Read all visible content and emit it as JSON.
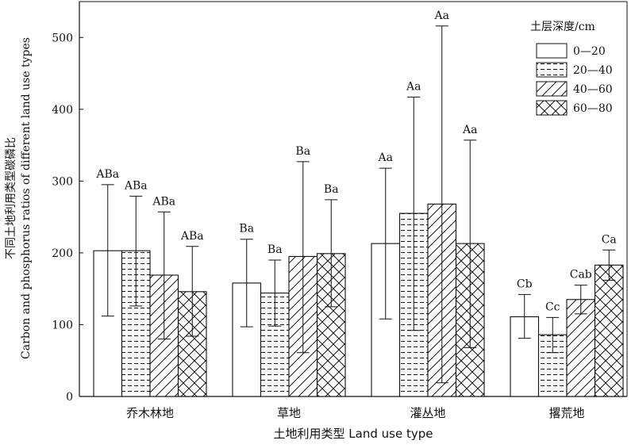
{
  "chart_data": {
    "type": "bar",
    "xlabel": "土地利用类型  Land use type",
    "ylabel": [
      "不同土地利用类型碳磷比",
      "Carbon and phosphorus ratios of different land use types"
    ],
    "ylim": [
      0,
      550
    ],
    "yticks": [
      0,
      100,
      200,
      300,
      400,
      500
    ],
    "categories": [
      "乔木林地",
      "草地",
      "灌丛地",
      "撂荒地"
    ],
    "legend": {
      "title": "土层深度/cm",
      "position": "top-right"
    },
    "series": [
      {
        "name": "0—20",
        "pattern": "blank",
        "values": [
          203,
          158,
          213,
          111
        ],
        "err_low": [
          112,
          97,
          108,
          81
        ],
        "err_high": [
          295,
          219,
          318,
          142
        ],
        "labels": [
          "ABa",
          "Ba",
          "Aa",
          "Cb"
        ]
      },
      {
        "name": "20—40",
        "pattern": "dashes",
        "values": [
          203,
          144,
          255,
          86
        ],
        "err_low": [
          126,
          98,
          92,
          61
        ],
        "err_high": [
          279,
          190,
          417,
          110
        ],
        "labels": [
          "ABa",
          "Ba",
          "Aa",
          "Cc"
        ]
      },
      {
        "name": "40—60",
        "pattern": "diagonal",
        "values": [
          169,
          195,
          268,
          135
        ],
        "err_low": [
          80,
          61,
          19,
          115
        ],
        "err_high": [
          257,
          327,
          516,
          155
        ],
        "labels": [
          "ABa",
          "Ba",
          "Aa",
          "Cab"
        ]
      },
      {
        "name": "60—80",
        "pattern": "crosshatch",
        "values": [
          146,
          199,
          213,
          183
        ],
        "err_low": [
          84,
          125,
          68,
          162
        ],
        "err_high": [
          209,
          274,
          357,
          204
        ],
        "labels": [
          "ABa",
          "Ba",
          "Aa",
          "Ca"
        ]
      }
    ]
  }
}
